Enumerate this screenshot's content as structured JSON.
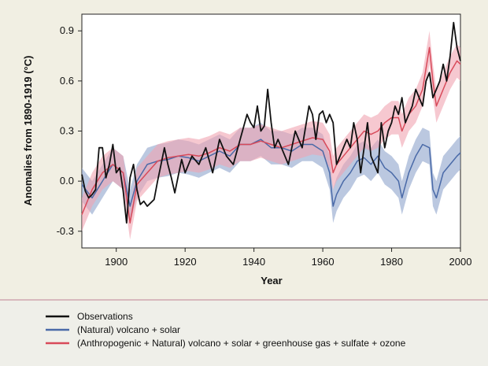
{
  "chart_data": {
    "type": "line",
    "title": "",
    "xlabel": "Year",
    "ylabel": "Anomalies from 1890-1919 (°C)",
    "xlim": [
      1890,
      2000
    ],
    "ylim": [
      -0.4,
      1.0
    ],
    "x_ticks": [
      {
        "value": 1900,
        "label": "1900"
      },
      {
        "value": 1920,
        "label": "1920"
      },
      {
        "value": 1940,
        "label": "1940"
      },
      {
        "value": 1960,
        "label": "1960"
      },
      {
        "value": 1980,
        "label": "1980"
      },
      {
        "value": 2000,
        "label": "2000"
      }
    ],
    "y_ticks": [
      {
        "value": -0.3,
        "label": "-0.3"
      },
      {
        "value": 0.0,
        "label": "0.0"
      },
      {
        "value": 0.3,
        "label": "0.3"
      },
      {
        "value": 0.6,
        "label": "0.6"
      },
      {
        "value": 0.9,
        "label": "0.9"
      }
    ],
    "grid": false,
    "legend_position": "bottom",
    "series": [
      {
        "name": "Observations",
        "color": "#111111",
        "x": [
          1890,
          1891,
          1892,
          1893,
          1894,
          1895,
          1896,
          1897,
          1898,
          1899,
          1900,
          1901,
          1902,
          1903,
          1904,
          1905,
          1906,
          1907,
          1908,
          1909,
          1910,
          1911,
          1912,
          1913,
          1914,
          1915,
          1916,
          1917,
          1918,
          1919,
          1920,
          1922,
          1924,
          1926,
          1928,
          1930,
          1932,
          1934,
          1936,
          1938,
          1939,
          1940,
          1941,
          1942,
          1943,
          1944,
          1945,
          1946,
          1947,
          1948,
          1950,
          1952,
          1954,
          1956,
          1957,
          1958,
          1959,
          1960,
          1961,
          1962,
          1963,
          1964,
          1965,
          1966,
          1967,
          1968,
          1969,
          1970,
          1971,
          1972,
          1973,
          1974,
          1975,
          1976,
          1977,
          1978,
          1979,
          1980,
          1981,
          1982,
          1983,
          1984,
          1985,
          1986,
          1987,
          1988,
          1989,
          1990,
          1991,
          1992,
          1993,
          1994,
          1995,
          1996,
          1997,
          1998,
          1999,
          2000
        ],
        "y": [
          0.04,
          -0.06,
          -0.1,
          -0.08,
          -0.05,
          0.2,
          0.2,
          0.02,
          0.1,
          0.22,
          0.05,
          0.08,
          -0.06,
          -0.25,
          0.02,
          0.1,
          -0.05,
          -0.14,
          -0.12,
          -0.15,
          -0.13,
          -0.11,
          0.0,
          0.1,
          0.2,
          0.1,
          0.02,
          -0.07,
          0.03,
          0.13,
          0.05,
          0.15,
          0.1,
          0.2,
          0.05,
          0.25,
          0.15,
          0.1,
          0.25,
          0.4,
          0.35,
          0.32,
          0.45,
          0.3,
          0.33,
          0.55,
          0.35,
          0.2,
          0.25,
          0.2,
          0.1,
          0.3,
          0.2,
          0.45,
          0.4,
          0.25,
          0.4,
          0.42,
          0.35,
          0.4,
          0.35,
          0.1,
          0.15,
          0.2,
          0.25,
          0.2,
          0.35,
          0.25,
          0.05,
          0.2,
          0.35,
          0.15,
          0.1,
          0.05,
          0.35,
          0.2,
          0.3,
          0.35,
          0.45,
          0.4,
          0.5,
          0.35,
          0.4,
          0.45,
          0.55,
          0.5,
          0.45,
          0.6,
          0.65,
          0.5,
          0.55,
          0.6,
          0.7,
          0.6,
          0.75,
          0.95,
          0.8,
          0.72
        ]
      },
      {
        "name": "(Natural) volcano + solar",
        "color": "#4a6aa8",
        "band_color": "#8ea4cc",
        "x": [
          1890,
          1893,
          1896,
          1899,
          1902,
          1904,
          1906,
          1909,
          1912,
          1915,
          1918,
          1921,
          1924,
          1927,
          1930,
          1933,
          1936,
          1939,
          1942,
          1945,
          1948,
          1951,
          1954,
          1957,
          1960,
          1962,
          1963,
          1964,
          1966,
          1968,
          1970,
          1972,
          1974,
          1976,
          1978,
          1980,
          1982,
          1983,
          1985,
          1987,
          1989,
          1991,
          1992,
          1993,
          1995,
          1997,
          1999,
          2000
        ],
        "y": [
          -0.02,
          -0.1,
          0.0,
          0.1,
          0.05,
          -0.15,
          0.0,
          0.1,
          0.12,
          0.13,
          0.15,
          0.14,
          0.12,
          0.15,
          0.18,
          0.15,
          0.22,
          0.22,
          0.25,
          0.2,
          0.2,
          0.18,
          0.22,
          0.22,
          0.18,
          0.05,
          -0.15,
          -0.08,
          0.0,
          0.05,
          0.12,
          0.14,
          0.1,
          0.15,
          0.08,
          0.05,
          0.0,
          -0.1,
          0.05,
          0.15,
          0.22,
          0.2,
          -0.05,
          -0.1,
          0.05,
          0.1,
          0.15,
          0.17
        ],
        "lower": [
          -0.12,
          -0.2,
          -0.1,
          0.0,
          -0.05,
          -0.25,
          -0.1,
          0.0,
          0.02,
          0.03,
          0.05,
          0.04,
          0.02,
          0.05,
          0.08,
          0.05,
          0.12,
          0.12,
          0.15,
          0.1,
          0.1,
          0.08,
          0.12,
          0.12,
          0.08,
          -0.05,
          -0.25,
          -0.18,
          -0.1,
          -0.05,
          0.02,
          0.04,
          0.0,
          0.05,
          -0.02,
          -0.05,
          -0.1,
          -0.2,
          -0.05,
          0.05,
          0.12,
          0.1,
          -0.15,
          -0.2,
          -0.05,
          0.0,
          0.05,
          0.07
        ],
        "upper": [
          0.08,
          0.0,
          0.1,
          0.2,
          0.15,
          -0.05,
          0.1,
          0.2,
          0.22,
          0.23,
          0.25,
          0.24,
          0.22,
          0.25,
          0.28,
          0.25,
          0.32,
          0.32,
          0.35,
          0.3,
          0.3,
          0.28,
          0.32,
          0.32,
          0.28,
          0.15,
          -0.05,
          0.02,
          0.1,
          0.15,
          0.22,
          0.24,
          0.2,
          0.25,
          0.18,
          0.15,
          0.1,
          0.0,
          0.15,
          0.25,
          0.32,
          0.3,
          0.05,
          0.0,
          0.15,
          0.2,
          0.25,
          0.27
        ]
      },
      {
        "name": "(Anthropogenic + Natural) volcano + solar + greenhouse gas + sulfate + ozone",
        "color": "#d84a5a",
        "band_color": "#f0a3b0",
        "x": [
          1890,
          1893,
          1896,
          1899,
          1902,
          1904,
          1906,
          1909,
          1912,
          1915,
          1918,
          1921,
          1924,
          1927,
          1930,
          1933,
          1936,
          1939,
          1942,
          1945,
          1948,
          1951,
          1954,
          1957,
          1960,
          1962,
          1963,
          1964,
          1966,
          1968,
          1970,
          1972,
          1974,
          1976,
          1978,
          1980,
          1982,
          1983,
          1985,
          1987,
          1989,
          1991,
          1992,
          1993,
          1995,
          1997,
          1999,
          2000
        ],
        "y": [
          -0.2,
          -0.05,
          0.05,
          0.1,
          0.05,
          -0.25,
          -0.02,
          0.05,
          0.12,
          0.14,
          0.15,
          0.16,
          0.15,
          0.17,
          0.2,
          0.18,
          0.22,
          0.22,
          0.24,
          0.22,
          0.2,
          0.22,
          0.24,
          0.26,
          0.25,
          0.18,
          0.05,
          0.1,
          0.15,
          0.2,
          0.25,
          0.3,
          0.28,
          0.3,
          0.35,
          0.38,
          0.38,
          0.3,
          0.4,
          0.45,
          0.55,
          0.8,
          0.6,
          0.45,
          0.55,
          0.65,
          0.72,
          0.7
        ],
        "lower": [
          -0.3,
          -0.15,
          -0.05,
          0.0,
          -0.05,
          -0.35,
          -0.12,
          -0.05,
          0.02,
          0.04,
          0.05,
          0.06,
          0.05,
          0.07,
          0.1,
          0.08,
          0.12,
          0.12,
          0.14,
          0.12,
          0.1,
          0.12,
          0.14,
          0.16,
          0.15,
          0.08,
          -0.05,
          0.0,
          0.05,
          0.1,
          0.15,
          0.2,
          0.18,
          0.2,
          0.25,
          0.28,
          0.28,
          0.2,
          0.3,
          0.35,
          0.45,
          0.7,
          0.5,
          0.35,
          0.45,
          0.55,
          0.62,
          0.6
        ],
        "upper": [
          -0.1,
          0.05,
          0.15,
          0.2,
          0.15,
          -0.15,
          0.08,
          0.15,
          0.22,
          0.24,
          0.25,
          0.26,
          0.25,
          0.27,
          0.3,
          0.28,
          0.32,
          0.32,
          0.34,
          0.32,
          0.3,
          0.32,
          0.34,
          0.36,
          0.35,
          0.28,
          0.15,
          0.2,
          0.25,
          0.3,
          0.35,
          0.4,
          0.38,
          0.4,
          0.45,
          0.48,
          0.48,
          0.4,
          0.5,
          0.55,
          0.65,
          0.9,
          0.7,
          0.55,
          0.65,
          0.75,
          0.82,
          0.8
        ]
      }
    ]
  }
}
